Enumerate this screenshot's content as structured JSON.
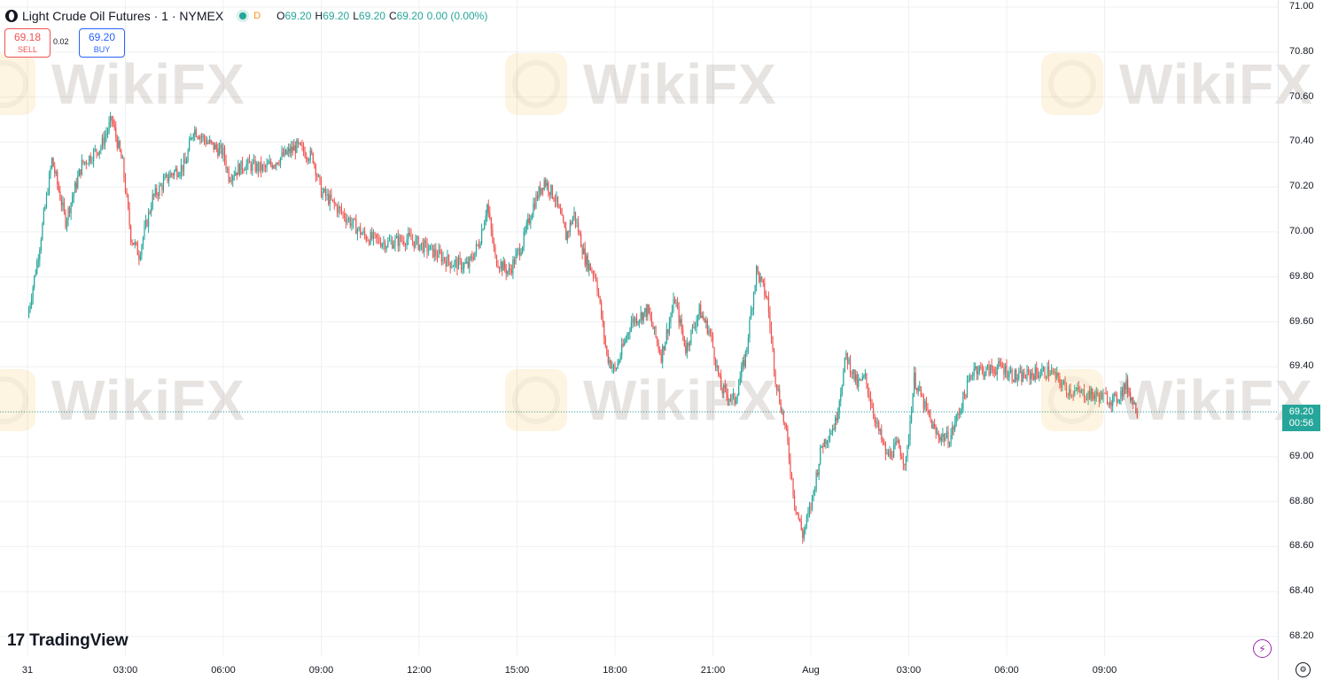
{
  "header": {
    "symbol_title": "Light Crude Oil Futures · 1 · NYMEX",
    "status_letter": "D",
    "ohlc": [
      {
        "label": "O",
        "value": "69.20"
      },
      {
        "label": "H",
        "value": "69.20"
      },
      {
        "label": "L",
        "value": "69.20"
      },
      {
        "label": "C",
        "value": "69.20"
      },
      {
        "label": "",
        "value": "0.00 (0.00%)"
      }
    ]
  },
  "trade": {
    "sell_price": "69.18",
    "sell_label": "SELL",
    "spread": "0.02",
    "buy_price": "69.20",
    "buy_label": "BUY"
  },
  "branding": {
    "logo_mark": "17",
    "logo_text": "TradingView",
    "watermark_text": "WikiFX"
  },
  "last_price": {
    "price": "69.20",
    "countdown": "00:56"
  },
  "colors": {
    "up": "#26a69a",
    "down": "#ef5350",
    "grid": "#eef0f3",
    "last_price_line": "#26a69a"
  },
  "icons": {
    "symbol": "oil-drop-icon",
    "lightning": "lightning-icon",
    "settings": "gear-icon"
  },
  "chart_data": {
    "type": "candlestick",
    "title": "Light Crude Oil Futures · 1 · NYMEX",
    "xlabel": "",
    "ylabel": "",
    "ylim": [
      68.2,
      71.0
    ],
    "y_ticks": [
      "71.00",
      "70.80",
      "70.60",
      "70.40",
      "70.20",
      "70.00",
      "69.80",
      "69.60",
      "69.40",
      "69.20",
      "69.00",
      "68.80",
      "68.60",
      "68.40",
      "68.20"
    ],
    "x_ticks": [
      "31",
      "03:00",
      "06:00",
      "09:00",
      "12:00",
      "15:00",
      "18:00",
      "21:00",
      "Aug",
      "03:00",
      "06:00",
      "09:00"
    ],
    "grid": true,
    "last_price": 69.2,
    "series": [
      {
        "points": [
          {
            "x": "31 00:00",
            "y": 69.62
          },
          {
            "x": "31 00:20",
            "y": 69.9
          },
          {
            "x": "31 00:45",
            "y": 70.32
          },
          {
            "x": "31 01:10",
            "y": 70.05
          },
          {
            "x": "31 01:40",
            "y": 70.3
          },
          {
            "x": "31 02:15",
            "y": 70.38
          },
          {
            "x": "31 02:35",
            "y": 70.5
          },
          {
            "x": "31 02:55",
            "y": 70.3
          },
          {
            "x": "31 03:10",
            "y": 69.98
          },
          {
            "x": "31 03:25",
            "y": 69.9
          },
          {
            "x": "31 03:50",
            "y": 70.15
          },
          {
            "x": "31 04:20",
            "y": 70.25
          },
          {
            "x": "31 04:50",
            "y": 70.3
          },
          {
            "x": "31 05:05",
            "y": 70.46
          },
          {
            "x": "31 05:30",
            "y": 70.4
          },
          {
            "x": "31 06:00",
            "y": 70.35
          },
          {
            "x": "31 06:10",
            "y": 70.25
          },
          {
            "x": "31 06:40",
            "y": 70.3
          },
          {
            "x": "31 07:15",
            "y": 70.28
          },
          {
            "x": "31 07:45",
            "y": 70.33
          },
          {
            "x": "31 08:15",
            "y": 70.38
          },
          {
            "x": "31 08:45",
            "y": 70.33
          },
          {
            "x": "31 09:00",
            "y": 70.18
          },
          {
            "x": "31 09:40",
            "y": 70.08
          },
          {
            "x": "31 10:20",
            "y": 69.98
          },
          {
            "x": "31 11:00",
            "y": 69.95
          },
          {
            "x": "31 11:40",
            "y": 69.97
          },
          {
            "x": "31 12:20",
            "y": 69.92
          },
          {
            "x": "31 13:00",
            "y": 69.86
          },
          {
            "x": "31 13:30",
            "y": 69.85
          },
          {
            "x": "31 13:50",
            "y": 69.95
          },
          {
            "x": "31 14:05",
            "y": 70.12
          },
          {
            "x": "31 14:20",
            "y": 69.88
          },
          {
            "x": "31 14:45",
            "y": 69.82
          },
          {
            "x": "31 15:10",
            "y": 69.95
          },
          {
            "x": "31 15:30",
            "y": 70.12
          },
          {
            "x": "31 15:50",
            "y": 70.23
          },
          {
            "x": "31 16:10",
            "y": 70.15
          },
          {
            "x": "31 16:30",
            "y": 69.98
          },
          {
            "x": "31 16:45",
            "y": 70.08
          },
          {
            "x": "31 17:05",
            "y": 69.88
          },
          {
            "x": "31 17:25",
            "y": 69.8
          },
          {
            "x": "31 17:45",
            "y": 69.45
          },
          {
            "x": "31 18:00",
            "y": 69.38
          },
          {
            "x": "31 18:30",
            "y": 69.6
          },
          {
            "x": "31 19:00",
            "y": 69.65
          },
          {
            "x": "31 19:25",
            "y": 69.45
          },
          {
            "x": "31 19:50",
            "y": 69.7
          },
          {
            "x": "31 20:10",
            "y": 69.48
          },
          {
            "x": "31 20:35",
            "y": 69.65
          },
          {
            "x": "31 20:55",
            "y": 69.55
          },
          {
            "x": "31 21:15",
            "y": 69.3
          },
          {
            "x": "31 21:40",
            "y": 69.25
          },
          {
            "x": "31 22:00",
            "y": 69.45
          },
          {
            "x": "31 22:20",
            "y": 69.83
          },
          {
            "x": "31 22:40",
            "y": 69.7
          },
          {
            "x": "31 22:55",
            "y": 69.35
          },
          {
            "x": "31 23:15",
            "y": 69.1
          },
          {
            "x": "31 23:30",
            "y": 68.8
          },
          {
            "x": "31 23:45",
            "y": 68.65
          },
          {
            "x": "1 00:00",
            "y": 68.78
          },
          {
            "x": "1 00:20",
            "y": 69.05
          },
          {
            "x": "1 00:45",
            "y": 69.15
          },
          {
            "x": "1 01:05",
            "y": 69.45
          },
          {
            "x": "1 01:25",
            "y": 69.32
          },
          {
            "x": "1 01:40",
            "y": 69.35
          },
          {
            "x": "1 02:00",
            "y": 69.15
          },
          {
            "x": "1 02:20",
            "y": 69.0
          },
          {
            "x": "1 02:40",
            "y": 69.05
          },
          {
            "x": "1 02:55",
            "y": 68.97
          },
          {
            "x": "1 03:10",
            "y": 69.35
          },
          {
            "x": "1 03:25",
            "y": 69.25
          },
          {
            "x": "1 03:50",
            "y": 69.1
          },
          {
            "x": "1 04:15",
            "y": 69.08
          },
          {
            "x": "1 04:35",
            "y": 69.22
          },
          {
            "x": "1 05:00",
            "y": 69.4
          },
          {
            "x": "1 05:20",
            "y": 69.38
          },
          {
            "x": "1 05:50",
            "y": 69.4
          },
          {
            "x": "1 06:20",
            "y": 69.35
          },
          {
            "x": "1 06:50",
            "y": 69.37
          },
          {
            "x": "1 07:20",
            "y": 69.38
          },
          {
            "x": "1 07:50",
            "y": 69.3
          },
          {
            "x": "1 08:20",
            "y": 69.28
          },
          {
            "x": "1 08:50",
            "y": 69.27
          },
          {
            "x": "1 09:20",
            "y": 69.25
          },
          {
            "x": "1 09:40",
            "y": 69.32
          },
          {
            "x": "1 10:00",
            "y": 69.2
          }
        ]
      }
    ]
  }
}
